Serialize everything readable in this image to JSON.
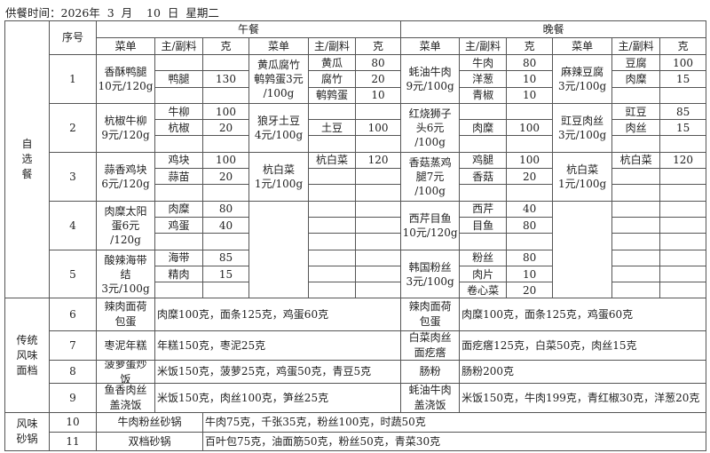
{
  "title": "供餐时间：2026年  3  月    10  日  星期二",
  "header": {
    "seq": "序号",
    "lunch": "午餐",
    "dinner": "晚餐",
    "menu": "菜单",
    "ingredient": "主/副料",
    "gram": "克"
  },
  "selfserve": {
    "category": "自\n选\n餐",
    "rows": [
      {
        "seq": "1",
        "dishes": [
          {
            "name": "香酥鸭腿\n10元/120g",
            "ing": [
              [
                "",
                ""
              ],
              [
                "鸭腿",
                "130"
              ],
              [
                "",
                ""
              ]
            ]
          },
          {
            "name": "黄瓜腐竹\n鹌鹑蛋3元\n/100g",
            "ing": [
              [
                "黄瓜",
                "80"
              ],
              [
                "腐竹",
                "20"
              ],
              [
                "鹌鹑蛋",
                "10"
              ]
            ]
          },
          {
            "name": "蚝油牛肉\n9元/100g",
            "ing": [
              [
                "牛肉",
                "80"
              ],
              [
                "洋葱",
                "10"
              ],
              [
                "青椒",
                "10"
              ]
            ]
          },
          {
            "name": "麻辣豆腐\n3元/100g",
            "ing": [
              [
                "豆腐",
                "100"
              ],
              [
                "肉糜",
                "15"
              ],
              [
                "",
                ""
              ]
            ]
          }
        ]
      },
      {
        "seq": "2",
        "dishes": [
          {
            "name": "杭椒牛柳\n9元/120g",
            "ing": [
              [
                "牛柳",
                "100"
              ],
              [
                "杭椒",
                "20"
              ],
              [
                "",
                ""
              ]
            ]
          },
          {
            "name": "狼牙土豆\n4元/100g",
            "ing": [
              [
                "",
                ""
              ],
              [
                "土豆",
                "100"
              ],
              [
                "",
                ""
              ]
            ]
          },
          {
            "name": "红烧狮子\n头6元\n/100g",
            "ing": [
              [
                "",
                ""
              ],
              [
                "肉糜",
                "100"
              ],
              [
                "",
                ""
              ]
            ]
          },
          {
            "name": "豇豆肉丝\n3元/100g",
            "ing": [
              [
                "豇豆",
                "85"
              ],
              [
                "肉丝",
                "15"
              ],
              [
                "",
                ""
              ]
            ]
          }
        ]
      },
      {
        "seq": "3",
        "dishes": [
          {
            "name": "蒜香鸡块\n6元/120g",
            "ing": [
              [
                "鸡块",
                "100"
              ],
              [
                "蒜苗",
                "20"
              ],
              [
                "",
                ""
              ]
            ]
          },
          {
            "name": "杭白菜\n1元/100g",
            "ing": [
              [
                "杭白菜",
                "120"
              ],
              [
                "",
                ""
              ],
              [
                "",
                ""
              ]
            ]
          },
          {
            "name": "香菇蒸鸡\n腿7元\n/100g",
            "ing": [
              [
                "鸡腿",
                "100"
              ],
              [
                "香菇",
                "20"
              ],
              [
                "",
                ""
              ]
            ]
          },
          {
            "name": "杭白菜\n1元/100g",
            "ing": [
              [
                "杭白菜",
                "120"
              ],
              [
                "",
                ""
              ],
              [
                "",
                ""
              ]
            ]
          }
        ]
      },
      {
        "seq": "4",
        "dishes": [
          {
            "name": "肉糜太阳\n蛋6元\n/120g",
            "ing": [
              [
                "肉糜",
                "80"
              ],
              [
                "鸡蛋",
                "40"
              ],
              [
                "",
                ""
              ]
            ]
          },
          null,
          {
            "name": "西芹目鱼\n10元/120g",
            "ing": [
              [
                "西芹",
                "40"
              ],
              [
                "目鱼",
                "80"
              ],
              [
                "",
                ""
              ]
            ]
          },
          null
        ]
      },
      {
        "seq": "5",
        "dishes": [
          {
            "name": "酸辣海带\n结\n3元/100g",
            "ing": [
              [
                "海带",
                "85"
              ],
              [
                "精肉",
                "15"
              ],
              [
                "",
                ""
              ]
            ]
          },
          null,
          {
            "name": "韩国粉丝\n3元/100g",
            "ing": [
              [
                "粉丝",
                "80"
              ],
              [
                "肉片",
                "10"
              ],
              [
                "卷心菜",
                "20"
              ]
            ]
          },
          null
        ]
      }
    ]
  },
  "traditional": {
    "category": "传统\n风味\n面档",
    "rows": [
      {
        "seq": "6",
        "lunch": {
          "name": "辣肉面荷\n包蛋",
          "desc": "肉糜100克，面条125克，鸡蛋60克"
        },
        "dinner": {
          "name": "辣肉面荷\n包蛋",
          "desc": "肉糜100克，面条125克，鸡蛋60克"
        }
      },
      {
        "seq": "7",
        "lunch": {
          "name": "枣泥年糕",
          "desc": "年糕150克，枣泥25克"
        },
        "dinner": {
          "name": "白菜肉丝\n面疙瘩",
          "desc": "面疙瘩125克，白菜50克，肉丝15克"
        }
      },
      {
        "seq": "8",
        "lunch": {
          "name": "菠萝蛋炒\n饭",
          "desc": "米饭150克，菠萝25克，鸡蛋50克，青豆5克"
        },
        "dinner": {
          "name": "肠粉",
          "desc": "肠粉200克"
        }
      },
      {
        "seq": "9",
        "lunch": {
          "name": "鱼香肉丝\n盖浇饭",
          "desc": "米饭150克，肉丝100克，笋丝25克"
        },
        "dinner": {
          "name": "蚝油牛肉\n盖浇饭",
          "desc": "米饭150克，牛肉199克，青红椒30克，洋葱20克"
        }
      }
    ]
  },
  "claypot": {
    "category": "风味\n砂锅",
    "rows": [
      {
        "seq": "10",
        "name": "牛肉粉丝砂锅",
        "desc": "牛肉75克，千张35克，粉丝100克，时蔬50克"
      },
      {
        "seq": "11",
        "name": "双档砂锅",
        "desc": "百叶包75克，油面筋50克，粉丝50克，青菜30克"
      }
    ]
  }
}
